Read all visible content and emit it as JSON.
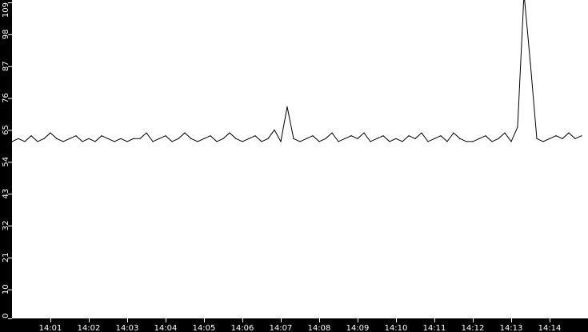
{
  "chart_data": {
    "type": "line",
    "title": "",
    "xlabel": "",
    "ylabel": "",
    "ylim": [
      0,
      109
    ],
    "xlim": [
      "14:00:00",
      "14:15:00"
    ],
    "grid": false,
    "y_ticks": [
      "0",
      "10",
      "21",
      "32",
      "43",
      "54",
      "65",
      "76",
      "87",
      "98",
      "109"
    ],
    "x_ticks": [
      "14:01",
      "14:02",
      "14:03",
      "14:04",
      "14:05",
      "14:06",
      "14:07",
      "14:08",
      "14:09",
      "14:10",
      "14:11",
      "14:12",
      "14:13",
      "14:14"
    ],
    "colors": {
      "background": "#000000",
      "plot_area": "#ffffff",
      "line": "#000000",
      "axis_text": "#ffffff"
    },
    "series": [
      {
        "x": [
          "14:00:00",
          "14:00:10",
          "14:00:20",
          "14:00:30",
          "14:00:40",
          "14:00:50",
          "14:01:00",
          "14:01:10",
          "14:01:20",
          "14:01:30",
          "14:01:40",
          "14:01:50",
          "14:02:00",
          "14:02:10",
          "14:02:20",
          "14:02:30",
          "14:02:40",
          "14:02:50",
          "14:03:00",
          "14:03:10",
          "14:03:20",
          "14:03:30",
          "14:03:40",
          "14:03:50",
          "14:04:00",
          "14:04:10",
          "14:04:20",
          "14:04:30",
          "14:04:40",
          "14:04:50",
          "14:05:00",
          "14:05:10",
          "14:05:20",
          "14:05:30",
          "14:05:40",
          "14:05:50",
          "14:06:00",
          "14:06:10",
          "14:06:20",
          "14:06:30",
          "14:06:40",
          "14:06:50",
          "14:07:00",
          "14:07:10",
          "14:07:20",
          "14:07:30",
          "14:07:40",
          "14:07:50",
          "14:08:00",
          "14:08:10",
          "14:08:20",
          "14:08:30",
          "14:08:40",
          "14:08:50",
          "14:09:00",
          "14:09:10",
          "14:09:20",
          "14:09:30",
          "14:09:40",
          "14:09:50",
          "14:10:00",
          "14:10:10",
          "14:10:20",
          "14:10:30",
          "14:10:40",
          "14:10:50",
          "14:11:00",
          "14:11:10",
          "14:11:20",
          "14:11:30",
          "14:11:40",
          "14:11:50",
          "14:12:00",
          "14:12:10",
          "14:12:20",
          "14:12:30",
          "14:12:40",
          "14:12:50",
          "14:13:00",
          "14:13:10",
          "14:13:20",
          "14:13:30",
          "14:13:40",
          "14:13:50",
          "14:14:00",
          "14:14:10",
          "14:14:20",
          "14:14:30",
          "14:14:40",
          "14:14:50"
        ],
        "values": [
          61,
          62,
          61,
          63,
          61,
          62,
          64,
          62,
          61,
          62,
          63,
          61,
          62,
          61,
          63,
          62,
          61,
          62,
          61,
          62,
          62,
          64,
          61,
          62,
          63,
          61,
          62,
          64,
          62,
          61,
          62,
          63,
          61,
          62,
          64,
          62,
          61,
          62,
          63,
          61,
          62,
          65,
          61,
          73,
          62,
          61,
          62,
          63,
          61,
          62,
          64,
          61,
          62,
          63,
          62,
          64,
          61,
          62,
          63,
          61,
          62,
          61,
          63,
          62,
          64,
          61,
          62,
          63,
          61,
          64,
          62,
          61,
          61,
          62,
          63,
          61,
          62,
          64,
          61,
          66,
          112,
          88,
          62,
          61,
          62,
          63,
          62,
          64,
          62,
          63
        ]
      }
    ]
  }
}
